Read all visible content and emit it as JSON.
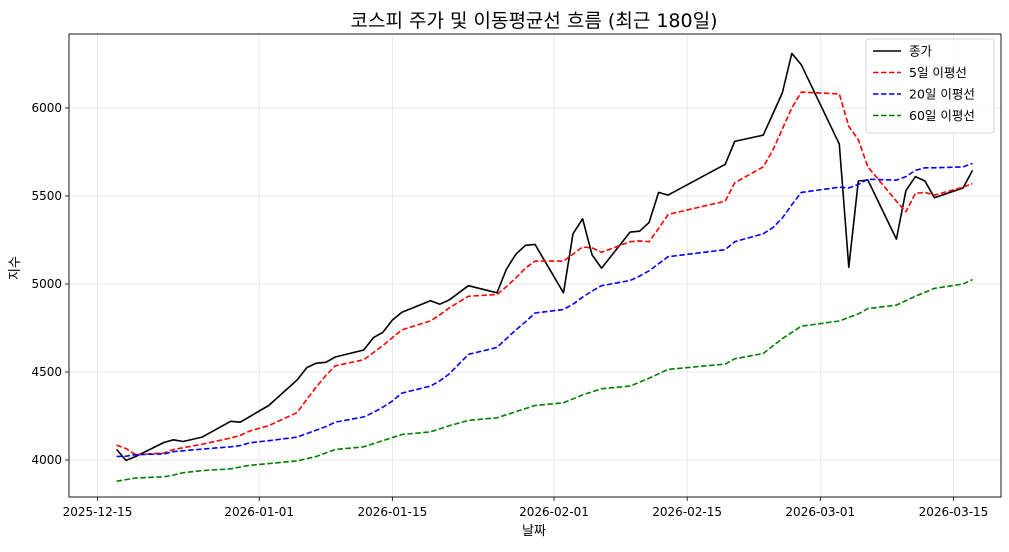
{
  "chart_data": {
    "type": "line",
    "title": "코스피 주가 및 이동평균선 흐름 (최근 180일)",
    "xlabel": "날짜",
    "ylabel": "지수",
    "x_axis": {
      "type": "date",
      "range": [
        "2025-12-12",
        "2026-03-20"
      ],
      "ticks": [
        "2025-12-15",
        "2026-01-01",
        "2026-01-15",
        "2026-02-01",
        "2026-02-15",
        "2026-03-01",
        "2026-03-15"
      ]
    },
    "y_axis": {
      "range": [
        3790,
        6420
      ],
      "ticks": [
        4000,
        4500,
        5000,
        5500,
        6000
      ]
    },
    "grid": true,
    "legend_position": "top-right",
    "series": [
      {
        "name": "종가",
        "color": "#000000",
        "dash": "solid",
        "points": [
          [
            "2025-12-17",
            4060
          ],
          [
            "2025-12-18",
            3998
          ],
          [
            "2025-12-19",
            4020
          ],
          [
            "2025-12-22",
            4100
          ],
          [
            "2025-12-23",
            4115
          ],
          [
            "2025-12-24",
            4105
          ],
          [
            "2025-12-26",
            4130
          ],
          [
            "2025-12-29",
            4220
          ],
          [
            "2025-12-30",
            4215
          ],
          [
            "2026-01-02",
            4310
          ],
          [
            "2026-01-05",
            4455
          ],
          [
            "2026-01-06",
            4525
          ],
          [
            "2026-01-07",
            4550
          ],
          [
            "2026-01-08",
            4555
          ],
          [
            "2026-01-09",
            4585
          ],
          [
            "2026-01-12",
            4625
          ],
          [
            "2026-01-13",
            4695
          ],
          [
            "2026-01-14",
            4725
          ],
          [
            "2026-01-15",
            4795
          ],
          [
            "2026-01-16",
            4840
          ],
          [
            "2026-01-19",
            4905
          ],
          [
            "2026-01-20",
            4885
          ],
          [
            "2026-01-21",
            4910
          ],
          [
            "2026-01-23",
            4990
          ],
          [
            "2026-01-26",
            4950
          ],
          [
            "2026-01-27",
            5085
          ],
          [
            "2026-01-28",
            5170
          ],
          [
            "2026-01-29",
            5220
          ],
          [
            "2026-01-30",
            5225
          ],
          [
            "2026-02-02",
            4950
          ],
          [
            "2026-02-03",
            5285
          ],
          [
            "2026-02-04",
            5370
          ],
          [
            "2026-02-05",
            5165
          ],
          [
            "2026-02-06",
            5090
          ],
          [
            "2026-02-09",
            5295
          ],
          [
            "2026-02-10",
            5300
          ],
          [
            "2026-02-11",
            5350
          ],
          [
            "2026-02-12",
            5520
          ],
          [
            "2026-02-13",
            5505
          ],
          [
            "2026-02-19",
            5680
          ],
          [
            "2026-02-20",
            5810
          ],
          [
            "2026-02-23",
            5845
          ],
          [
            "2026-02-25",
            6085
          ],
          [
            "2026-02-26",
            6310
          ],
          [
            "2026-02-27",
            6245
          ],
          [
            "2026-03-03",
            5795
          ],
          [
            "2026-03-04",
            5095
          ],
          [
            "2026-03-05",
            5585
          ],
          [
            "2026-03-06",
            5590
          ],
          [
            "2026-03-09",
            5255
          ],
          [
            "2026-03-10",
            5530
          ],
          [
            "2026-03-11",
            5610
          ],
          [
            "2026-03-12",
            5585
          ],
          [
            "2026-03-13",
            5490
          ],
          [
            "2026-03-16",
            5545
          ],
          [
            "2026-03-17",
            5645
          ]
        ]
      },
      {
        "name": "5일 이평선",
        "color": "#ff0000",
        "dash": "dashed",
        "points": [
          [
            "2025-12-17",
            4085
          ],
          [
            "2025-12-18",
            4065
          ],
          [
            "2025-12-19",
            4030
          ],
          [
            "2025-12-22",
            4040
          ],
          [
            "2025-12-23",
            4060
          ],
          [
            "2025-12-26",
            4090
          ],
          [
            "2025-12-29",
            4125
          ],
          [
            "2025-12-30",
            4140
          ],
          [
            "2025-12-31",
            4165
          ],
          [
            "2026-01-02",
            4195
          ],
          [
            "2026-01-05",
            4270
          ],
          [
            "2026-01-06",
            4345
          ],
          [
            "2026-01-07",
            4415
          ],
          [
            "2026-01-08",
            4480
          ],
          [
            "2026-01-09",
            4535
          ],
          [
            "2026-01-12",
            4570
          ],
          [
            "2026-01-13",
            4610
          ],
          [
            "2026-01-14",
            4650
          ],
          [
            "2026-01-15",
            4695
          ],
          [
            "2026-01-16",
            4740
          ],
          [
            "2026-01-19",
            4790
          ],
          [
            "2026-01-20",
            4825
          ],
          [
            "2026-01-21",
            4865
          ],
          [
            "2026-01-23",
            4930
          ],
          [
            "2026-01-26",
            4940
          ],
          [
            "2026-01-27",
            4985
          ],
          [
            "2026-01-28",
            5035
          ],
          [
            "2026-01-29",
            5090
          ],
          [
            "2026-01-30",
            5130
          ],
          [
            "2026-02-02",
            5130
          ],
          [
            "2026-02-03",
            5170
          ],
          [
            "2026-02-04",
            5210
          ],
          [
            "2026-02-05",
            5205
          ],
          [
            "2026-02-06",
            5180
          ],
          [
            "2026-02-09",
            5240
          ],
          [
            "2026-02-10",
            5245
          ],
          [
            "2026-02-11",
            5240
          ],
          [
            "2026-02-12",
            5315
          ],
          [
            "2026-02-13",
            5395
          ],
          [
            "2026-02-19",
            5470
          ],
          [
            "2026-02-20",
            5575
          ],
          [
            "2026-02-23",
            5665
          ],
          [
            "2026-02-24",
            5760
          ],
          [
            "2026-02-25",
            5880
          ],
          [
            "2026-02-26",
            6000
          ],
          [
            "2026-02-27",
            6090
          ],
          [
            "2026-03-03",
            6080
          ],
          [
            "2026-03-04",
            5895
          ],
          [
            "2026-03-05",
            5820
          ],
          [
            "2026-03-06",
            5665
          ],
          [
            "2026-03-09",
            5470
          ],
          [
            "2026-03-10",
            5410
          ],
          [
            "2026-03-11",
            5515
          ],
          [
            "2026-03-12",
            5520
          ],
          [
            "2026-03-13",
            5505
          ],
          [
            "2026-03-16",
            5550
          ],
          [
            "2026-03-17",
            5570
          ]
        ]
      },
      {
        "name": "20일 이평선",
        "color": "#0000ff",
        "dash": "dashed",
        "points": [
          [
            "2025-12-17",
            4020
          ],
          [
            "2025-12-18",
            4022
          ],
          [
            "2025-12-19",
            4030
          ],
          [
            "2025-12-22",
            4035
          ],
          [
            "2025-12-23",
            4048
          ],
          [
            "2025-12-26",
            4062
          ],
          [
            "2025-12-29",
            4075
          ],
          [
            "2025-12-30",
            4082
          ],
          [
            "2025-12-31",
            4098
          ],
          [
            "2026-01-02",
            4110
          ],
          [
            "2026-01-05",
            4130
          ],
          [
            "2026-01-06",
            4150
          ],
          [
            "2026-01-07",
            4170
          ],
          [
            "2026-01-08",
            4190
          ],
          [
            "2026-01-09",
            4215
          ],
          [
            "2026-01-12",
            4245
          ],
          [
            "2026-01-13",
            4270
          ],
          [
            "2026-01-14",
            4300
          ],
          [
            "2026-01-15",
            4335
          ],
          [
            "2026-01-16",
            4380
          ],
          [
            "2026-01-19",
            4420
          ],
          [
            "2026-01-20",
            4450
          ],
          [
            "2026-01-21",
            4490
          ],
          [
            "2026-01-23",
            4600
          ],
          [
            "2026-01-26",
            4640
          ],
          [
            "2026-01-27",
            4690
          ],
          [
            "2026-01-28",
            4740
          ],
          [
            "2026-01-29",
            4785
          ],
          [
            "2026-01-30",
            4835
          ],
          [
            "2026-02-02",
            4855
          ],
          [
            "2026-02-03",
            4885
          ],
          [
            "2026-02-04",
            4925
          ],
          [
            "2026-02-05",
            4960
          ],
          [
            "2026-02-06",
            4990
          ],
          [
            "2026-02-09",
            5020
          ],
          [
            "2026-02-10",
            5045
          ],
          [
            "2026-02-11",
            5075
          ],
          [
            "2026-02-12",
            5115
          ],
          [
            "2026-02-13",
            5155
          ],
          [
            "2026-02-19",
            5195
          ],
          [
            "2026-02-20",
            5240
          ],
          [
            "2026-02-23",
            5285
          ],
          [
            "2026-02-24",
            5320
          ],
          [
            "2026-02-25",
            5375
          ],
          [
            "2026-02-26",
            5450
          ],
          [
            "2026-02-27",
            5520
          ],
          [
            "2026-03-03",
            5550
          ],
          [
            "2026-03-04",
            5545
          ],
          [
            "2026-03-05",
            5565
          ],
          [
            "2026-03-06",
            5595
          ],
          [
            "2026-03-09",
            5590
          ],
          [
            "2026-03-10",
            5610
          ],
          [
            "2026-03-11",
            5645
          ],
          [
            "2026-03-12",
            5660
          ],
          [
            "2026-03-13",
            5660
          ],
          [
            "2026-03-16",
            5665
          ],
          [
            "2026-03-17",
            5685
          ]
        ]
      },
      {
        "name": "60일 이평선",
        "color": "#008000",
        "dash": "dashed",
        "points": [
          [
            "2025-12-17",
            3880
          ],
          [
            "2025-12-19",
            3898
          ],
          [
            "2025-12-22",
            3905
          ],
          [
            "2025-12-23",
            3915
          ],
          [
            "2025-12-24",
            3928
          ],
          [
            "2025-12-26",
            3940
          ],
          [
            "2025-12-29",
            3950
          ],
          [
            "2025-12-31",
            3970
          ],
          [
            "2026-01-02",
            3980
          ],
          [
            "2026-01-05",
            3995
          ],
          [
            "2026-01-07",
            4020
          ],
          [
            "2026-01-09",
            4060
          ],
          [
            "2026-01-12",
            4075
          ],
          [
            "2026-01-14",
            4110
          ],
          [
            "2026-01-16",
            4145
          ],
          [
            "2026-01-19",
            4160
          ],
          [
            "2026-01-21",
            4195
          ],
          [
            "2026-01-23",
            4225
          ],
          [
            "2026-01-26",
            4240
          ],
          [
            "2026-01-28",
            4275
          ],
          [
            "2026-01-30",
            4310
          ],
          [
            "2026-02-02",
            4325
          ],
          [
            "2026-02-04",
            4370
          ],
          [
            "2026-02-06",
            4405
          ],
          [
            "2026-02-09",
            4420
          ],
          [
            "2026-02-11",
            4465
          ],
          [
            "2026-02-13",
            4515
          ],
          [
            "2026-02-19",
            4545
          ],
          [
            "2026-02-20",
            4575
          ],
          [
            "2026-02-23",
            4605
          ],
          [
            "2026-02-25",
            4690
          ],
          [
            "2026-02-27",
            4760
          ],
          [
            "2026-03-03",
            4790
          ],
          [
            "2026-03-05",
            4830
          ],
          [
            "2026-03-06",
            4860
          ],
          [
            "2026-03-09",
            4880
          ],
          [
            "2026-03-11",
            4930
          ],
          [
            "2026-03-13",
            4975
          ],
          [
            "2026-03-16",
            5000
          ],
          [
            "2026-03-17",
            5025
          ]
        ]
      }
    ]
  }
}
